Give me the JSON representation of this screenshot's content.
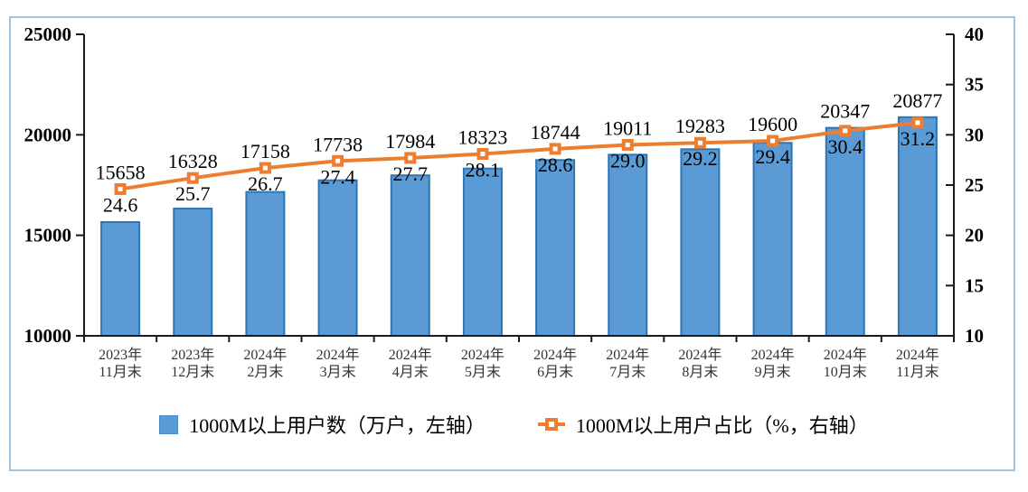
{
  "chart_data": {
    "type": "bar",
    "subtype": "bar-line-combo",
    "title": "",
    "categories": [
      "2023年\n11月末",
      "2023年\n12月末",
      "2024年\n2月末",
      "2024年\n3月末",
      "2024年\n4月末",
      "2024年\n5月末",
      "2024年\n6月末",
      "2024年\n7月末",
      "2024年\n8月末",
      "2024年\n9月末",
      "2024年\n10月末",
      "2024年\n11月末"
    ],
    "series": [
      {
        "name": "1000M以上用户数（万户，左轴）",
        "type": "bar",
        "axis": "left",
        "values": [
          15658,
          16328,
          17158,
          17738,
          17984,
          18323,
          18744,
          19011,
          19283,
          19600,
          20347,
          20877
        ]
      },
      {
        "name": "1000M以上用户占比（%，右轴）",
        "type": "line",
        "axis": "right",
        "label_decimals": 1,
        "values": [
          24.6,
          25.7,
          26.7,
          27.4,
          27.7,
          28.1,
          28.6,
          29.0,
          29.2,
          29.4,
          30.4,
          31.2
        ]
      }
    ],
    "axes": {
      "left": {
        "min": 10000,
        "max": 25000,
        "ticks": [
          10000,
          15000,
          20000,
          25000
        ]
      },
      "right": {
        "min": 10,
        "max": 40,
        "ticks": [
          10,
          15,
          20,
          25,
          30,
          35,
          40
        ]
      }
    },
    "grid": false,
    "legend_position": "bottom",
    "colors": {
      "bar_fill": "#5B9BD5",
      "bar_border": "#2E75B6",
      "line": "#ED7D31",
      "marker_fill": "#FFFFFF",
      "frame_border": "#9DC3E6",
      "axis": "#1a1a1a",
      "data_label": "#000000",
      "category_text": "#333333"
    }
  }
}
